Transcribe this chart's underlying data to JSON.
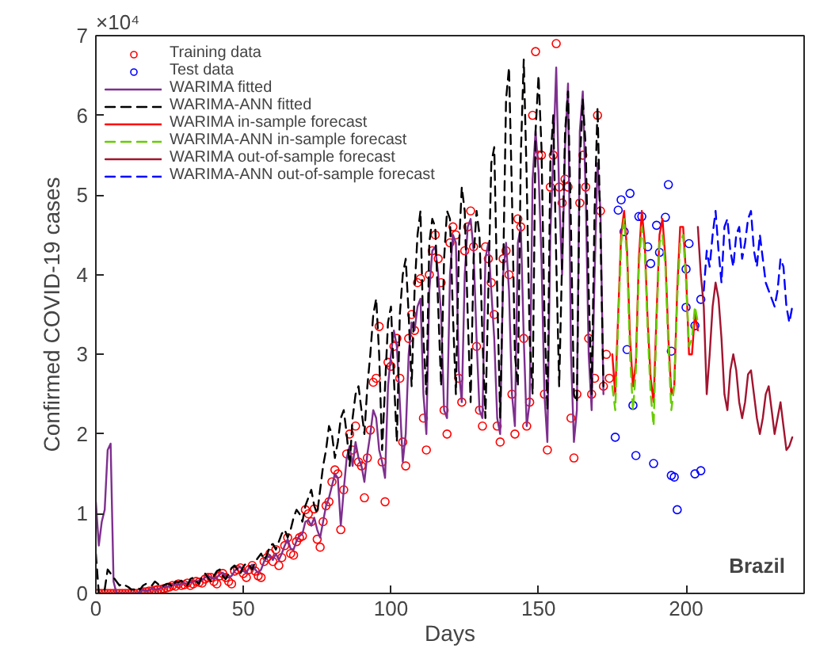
{
  "chart_data": {
    "type": "line",
    "xlabel": "Days",
    "ylabel": "Confirmed COVID-19 cases",
    "annotations": [
      "×10⁴",
      "Brazil"
    ],
    "xlim": [
      0,
      240
    ],
    "xticks": [
      0,
      50,
      100,
      150,
      200
    ],
    "ylim": [
      0,
      7
    ],
    "yticks": [
      0,
      1,
      2,
      3,
      4,
      5,
      6,
      7
    ],
    "grid": false,
    "legend": "top left",
    "series": [
      {
        "name": "Training data",
        "type": "scatter",
        "marker": "circle",
        "color": "#ff0000",
        "x": [
          0,
          1,
          2,
          3,
          4,
          5,
          6,
          7,
          8,
          9,
          10,
          11,
          12,
          13,
          14,
          15,
          16,
          17,
          18,
          19,
          20,
          21,
          22,
          23,
          24,
          25,
          26,
          27,
          28,
          29,
          30,
          31,
          32,
          33,
          34,
          35,
          36,
          37,
          38,
          39,
          40,
          41,
          42,
          43,
          44,
          45,
          46,
          47,
          48,
          49,
          50,
          51,
          52,
          53,
          54,
          55,
          56,
          57,
          58,
          59,
          60,
          61,
          62,
          63,
          64,
          65,
          66,
          67,
          68,
          69,
          70,
          71,
          72,
          73,
          74,
          75,
          76,
          77,
          78,
          79,
          80,
          81,
          82,
          83,
          84,
          85,
          86,
          87,
          88,
          89,
          90,
          91,
          92,
          93,
          94,
          95,
          96,
          97,
          98,
          99,
          100,
          101,
          102,
          103,
          104,
          105,
          106,
          107,
          108,
          109,
          110,
          111,
          112,
          113,
          114,
          115,
          116,
          117,
          118,
          119,
          120,
          121,
          122,
          123,
          124,
          125,
          126,
          127,
          128,
          129,
          130,
          131,
          132,
          133,
          134,
          135,
          136,
          137,
          138,
          139,
          140,
          141,
          142,
          143,
          144,
          145,
          146,
          147,
          148,
          149,
          150,
          151,
          152,
          153,
          154,
          155,
          156,
          157,
          158,
          159,
          160,
          161,
          162,
          163,
          164,
          165,
          166,
          167,
          168,
          169,
          170,
          171,
          172,
          173,
          174
        ],
        "values": [
          0,
          0,
          0,
          0,
          0,
          0,
          0,
          0,
          0,
          0,
          0,
          0,
          0,
          0,
          0,
          0.01,
          0.02,
          0.02,
          0.03,
          0.03,
          0.04,
          0.05,
          0.05,
          0.06,
          0.07,
          0.08,
          0.1,
          0.09,
          0.12,
          0.1,
          0.11,
          0.13,
          0.1,
          0.12,
          0.15,
          0.14,
          0.13,
          0.18,
          0.2,
          0.2,
          0.15,
          0.12,
          0.22,
          0.25,
          0.2,
          0.15,
          0.12,
          0.28,
          0.3,
          0.32,
          0.25,
          0.2,
          0.3,
          0.35,
          0.28,
          0.22,
          0.2,
          0.4,
          0.45,
          0.5,
          0.4,
          0.55,
          0.35,
          0.45,
          0.6,
          0.7,
          0.5,
          0.48,
          0.65,
          0.7,
          0.72,
          1.05,
          1.0,
          0.9,
          1.06,
          0.68,
          0.58,
          0.9,
          1.1,
          1.15,
          1.4,
          1.55,
          1.5,
          0.8,
          1.3,
          1.75,
          2.0,
          1.8,
          2.1,
          1.65,
          1.6,
          1.2,
          1.7,
          2.05,
          2.65,
          2.7,
          3.35,
          1.65,
          1.15,
          2.9,
          2.85,
          3.1,
          3.2,
          2.7,
          1.9,
          1.6,
          3.2,
          3.5,
          3.3,
          3.9,
          3.95,
          2.2,
          1.8,
          4.0,
          4.3,
          4.5,
          4.2,
          3.9,
          2.3,
          2.0,
          4.4,
          4.6,
          4.5,
          2.7,
          2.4,
          4.3,
          4.6,
          4.8,
          4.35,
          3.1,
          2.3,
          2.1,
          4.35,
          4.2,
          3.9,
          3.5,
          2.1,
          1.9,
          4.2,
          4.3,
          4.0,
          2.5,
          2.0,
          4.7,
          4.6,
          3.2,
          2.1,
          2.4,
          6.0,
          6.8,
          5.5,
          5.5,
          2.5,
          1.8,
          5.1,
          5.5,
          6.9,
          5.1,
          4.9,
          5.2,
          5.1,
          2.2,
          1.7,
          2.5,
          4.9,
          5.5,
          5.1,
          3.2,
          2.5,
          2.7,
          6.0,
          4.8,
          2.6,
          3.0,
          2.7
        ]
      },
      {
        "name": "Test data",
        "type": "scatter",
        "marker": "circle",
        "color": "#0000ff",
        "x": [
          176,
          177,
          178,
          179,
          180,
          181,
          182,
          183,
          184,
          185,
          187,
          188,
          189,
          190,
          191,
          193,
          194,
          195,
          195,
          196,
          197,
          200,
          200,
          201,
          203,
          203,
          205,
          205
        ],
        "values": [
          1.96,
          4.81,
          4.94,
          4.54,
          3.06,
          5.02,
          2.36,
          1.73,
          4.73,
          4.73,
          4.35,
          4.14,
          1.63,
          4.62,
          4.28,
          4.72,
          5.13,
          3.04,
          1.48,
          1.46,
          1.05,
          4.07,
          3.59,
          4.39,
          3.36,
          1.5,
          1.54,
          3.69
        ]
      },
      {
        "name": "WARIMA fitted",
        "line_style": "solid",
        "color": "#7e2f8e",
        "x": [
          0,
          1,
          2,
          3,
          4,
          5,
          6,
          7,
          8,
          9,
          10,
          11,
          12,
          13,
          14,
          15,
          16,
          17,
          18,
          19,
          20,
          21,
          22,
          23,
          24,
          25,
          26,
          27,
          28,
          29,
          30,
          31,
          32,
          33,
          34,
          35,
          36,
          37,
          38,
          39,
          40,
          41,
          42,
          43,
          44,
          45,
          46,
          47,
          48,
          49,
          50,
          51,
          52,
          53,
          54,
          55,
          56,
          57,
          58,
          59,
          60,
          61,
          62,
          63,
          64,
          65,
          66,
          67,
          68,
          69,
          70,
          71,
          72,
          73,
          74,
          75,
          76,
          77,
          78,
          79,
          80,
          81,
          82,
          83,
          84,
          85,
          86,
          87,
          88,
          89,
          90,
          91,
          92,
          93,
          94,
          95,
          96,
          97,
          98,
          99,
          100,
          101,
          102,
          103,
          104,
          105,
          106,
          107,
          108,
          109,
          110,
          111,
          112,
          113,
          114,
          115,
          116,
          117,
          118,
          119,
          120,
          121,
          122,
          123,
          124,
          125,
          126,
          127,
          128,
          129,
          130,
          131,
          132,
          133,
          134,
          135,
          136,
          137,
          138,
          139,
          140,
          141,
          142,
          143,
          144,
          145,
          146,
          147,
          148,
          149,
          150,
          151,
          152,
          153,
          154,
          155,
          156,
          157,
          158,
          159,
          160,
          161,
          162,
          163,
          164,
          165,
          166,
          167,
          168,
          169,
          170,
          171,
          172
        ],
        "values": [
          1.15,
          0.6,
          0.9,
          1.05,
          1.8,
          1.88,
          0.15,
          0,
          0,
          0,
          0,
          0,
          0,
          0,
          0,
          0.02,
          0.05,
          0.03,
          0.04,
          0.06,
          0.05,
          0.05,
          0.07,
          0.08,
          0.08,
          0.09,
          0.1,
          0.12,
          0.11,
          0.12,
          0.13,
          0.12,
          0.14,
          0.15,
          0.15,
          0.16,
          0.17,
          0.2,
          0.22,
          0.2,
          0.18,
          0.2,
          0.24,
          0.26,
          0.22,
          0.2,
          0.22,
          0.28,
          0.32,
          0.33,
          0.28,
          0.26,
          0.33,
          0.36,
          0.3,
          0.26,
          0.3,
          0.4,
          0.45,
          0.48,
          0.42,
          0.5,
          0.42,
          0.5,
          0.6,
          0.68,
          0.56,
          0.55,
          0.66,
          0.72,
          0.75,
          0.9,
          0.92,
          0.85,
          0.95,
          0.8,
          0.7,
          0.9,
          1.1,
          1.2,
          1.35,
          1.5,
          1.45,
          0.85,
          1.3,
          1.7,
          1.85,
          1.6,
          1.9,
          1.7,
          1.6,
          1.4,
          1.75,
          2.0,
          2.3,
          2.2,
          1.8,
          1.65,
          1.45,
          2.6,
          3.0,
          3.3,
          3.1,
          2.4,
          1.65,
          2.0,
          3.0,
          3.4,
          3.3,
          3.6,
          3.7,
          2.5,
          2.0,
          3.8,
          4.3,
          4.35,
          4.0,
          3.5,
          2.3,
          2.2,
          4.0,
          4.5,
          4.4,
          2.8,
          2.4,
          4.0,
          4.6,
          4.7,
          4.3,
          3.2,
          2.3,
          2.2,
          4.2,
          4.4,
          3.8,
          3.2,
          2.2,
          2.0,
          4.0,
          4.4,
          3.8,
          2.5,
          2.1,
          4.4,
          4.6,
          3.2,
          2.1,
          2.4,
          5.2,
          5.8,
          5.3,
          4.2,
          2.5,
          1.9,
          4.5,
          5.5,
          6.6,
          5.0,
          4.0,
          5.6,
          6.4,
          3.0,
          1.9,
          2.3,
          5.8,
          6.3,
          5.0,
          3.0,
          2.3,
          4.0,
          5.4,
          4.8,
          2.5
        ]
      },
      {
        "name": "WARIMA-ANN fitted",
        "line_style": "dashed",
        "color": "#000000",
        "x": [
          0,
          1,
          2,
          3,
          4,
          5,
          6,
          7,
          8,
          9,
          10,
          11,
          12,
          13,
          14,
          15,
          16,
          17,
          18,
          19,
          20,
          21,
          22,
          23,
          24,
          25,
          26,
          27,
          28,
          29,
          30,
          31,
          32,
          33,
          34,
          35,
          36,
          37,
          38,
          39,
          40,
          41,
          42,
          43,
          44,
          45,
          46,
          47,
          48,
          49,
          50,
          51,
          52,
          53,
          54,
          55,
          56,
          57,
          58,
          59,
          60,
          61,
          62,
          63,
          64,
          65,
          66,
          67,
          68,
          69,
          70,
          71,
          72,
          73,
          74,
          75,
          76,
          77,
          78,
          79,
          80,
          81,
          82,
          83,
          84,
          85,
          86,
          87,
          88,
          89,
          90,
          91,
          92,
          93,
          94,
          95,
          96,
          97,
          98,
          99,
          100,
          101,
          102,
          103,
          104,
          105,
          106,
          107,
          108,
          109,
          110,
          111,
          112,
          113,
          114,
          115,
          116,
          117,
          118,
          119,
          120,
          121,
          122,
          123,
          124,
          125,
          126,
          127,
          128,
          129,
          130,
          131,
          132,
          133,
          134,
          135,
          136,
          137,
          138,
          139,
          140,
          141,
          142,
          143,
          144,
          145,
          146,
          147,
          148,
          149,
          150,
          151,
          152,
          153,
          154,
          155,
          156,
          157,
          158,
          159,
          160,
          161,
          162,
          163,
          164,
          165,
          166,
          167,
          168,
          169,
          170,
          171,
          172
        ],
        "values": [
          0.5,
          0,
          0,
          0.05,
          0.3,
          0.25,
          0.2,
          0.15,
          0.1,
          0.12,
          0.1,
          0.08,
          0.05,
          0.05,
          0.08,
          0.05,
          0.1,
          0.12,
          0.1,
          0.1,
          0.15,
          0.12,
          0.08,
          0.1,
          0.12,
          0.12,
          0.08,
          0.15,
          0.14,
          0.16,
          0.12,
          0.1,
          0.18,
          0.2,
          0.15,
          0.12,
          0.22,
          0.25,
          0.2,
          0.15,
          0.22,
          0.28,
          0.3,
          0.22,
          0.18,
          0.25,
          0.32,
          0.35,
          0.3,
          0.25,
          0.34,
          0.38,
          0.35,
          0.3,
          0.4,
          0.45,
          0.5,
          0.42,
          0.48,
          0.6,
          0.62,
          0.55,
          0.65,
          0.75,
          0.8,
          0.7,
          0.8,
          0.95,
          1.05,
          1.0,
          0.9,
          1.1,
          1.2,
          1.3,
          1.1,
          1.0,
          1.3,
          1.6,
          1.8,
          2.1,
          2.0,
          1.7,
          1.9,
          2.2,
          2.3,
          2.0,
          1.6,
          2.2,
          2.5,
          2.6,
          2.3,
          2.0,
          2.6,
          3.0,
          3.5,
          3.7,
          3.0,
          1.8,
          2.6,
          3.4,
          3.6,
          2.7,
          1.9,
          3.5,
          4.0,
          4.2,
          3.5,
          2.6,
          3.8,
          4.5,
          4.8,
          3.2,
          2.5,
          4.4,
          4.7,
          4.6,
          3.6,
          2.6,
          4.2,
          4.8,
          4.7,
          3.5,
          2.5,
          4.3,
          5.1,
          4.8,
          3.5,
          2.4,
          4.2,
          4.8,
          4.5,
          3.2,
          2.2,
          3.8,
          5.4,
          5.6,
          3.8,
          2.2,
          4.0,
          6.2,
          6.6,
          5.0,
          3.0,
          2.6,
          5.5,
          6.7,
          5.2,
          3.2,
          2.5,
          5.8,
          6.5,
          5.6,
          3.5,
          2.3,
          5.4,
          6.0,
          4.2,
          2.6,
          4.2,
          5.8,
          6.3,
          4.6,
          2.5,
          2.4,
          5.4,
          6.2,
          5.6,
          3.8,
          2.5,
          4.8,
          6.1,
          4.5,
          2.6
        ]
      },
      {
        "name": "WARIMA in-sample forecast",
        "line_style": "solid",
        "color": "#ff0000",
        "x": [
          175,
          176,
          177,
          178,
          179,
          180,
          181,
          182,
          183,
          184,
          185,
          186,
          187,
          188,
          189,
          190,
          191,
          192,
          193,
          194,
          195,
          196,
          197,
          198,
          199,
          200,
          201,
          202,
          203,
          204
        ],
        "values": [
          3.0,
          2.5,
          3.5,
          4.5,
          4.8,
          4.3,
          3.2,
          2.6,
          2.9,
          4.2,
          4.8,
          4.4,
          3.4,
          2.7,
          2.4,
          3.5,
          4.5,
          4.7,
          4.2,
          3.2,
          2.5,
          2.6,
          3.8,
          4.6,
          4.6,
          4.0,
          3.0,
          3.0,
          3.5,
          3.3
        ]
      },
      {
        "name": "WARIMA-ANN in-sample forecast",
        "line_style": "dashed",
        "color": "#66cc00",
        "x": [
          175,
          176,
          177,
          178,
          179,
          180,
          181,
          182,
          183,
          184,
          185,
          186,
          187,
          188,
          189,
          190,
          191,
          192,
          193,
          194,
          195,
          196,
          197,
          198,
          199,
          200,
          201,
          202,
          203,
          204
        ],
        "values": [
          2.6,
          2.3,
          3.4,
          4.4,
          4.7,
          4.2,
          3.0,
          2.3,
          2.8,
          4.1,
          4.6,
          4.3,
          3.3,
          2.5,
          2.1,
          3.4,
          4.4,
          4.5,
          4.1,
          3.1,
          2.3,
          2.6,
          3.7,
          4.4,
          4.5,
          3.9,
          3.1,
          3.2,
          3.6,
          3.4
        ]
      },
      {
        "name": "WARIMA out-of-sample forecast",
        "line_style": "solid",
        "color": "#a2142f",
        "x": [
          204,
          205,
          206,
          207,
          208,
          209,
          210,
          211,
          212,
          213,
          214,
          215,
          216,
          217,
          218,
          219,
          220,
          221,
          222,
          223,
          224,
          225,
          226,
          227,
          228,
          229,
          230,
          231,
          232,
          233,
          234,
          235,
          236
        ],
        "values": [
          4.6,
          4.0,
          3.6,
          2.5,
          3.0,
          3.6,
          3.9,
          3.7,
          3.2,
          2.5,
          2.3,
          2.8,
          3.0,
          2.8,
          2.4,
          2.2,
          2.4,
          2.75,
          2.8,
          2.5,
          2.2,
          2.0,
          2.2,
          2.5,
          2.6,
          2.3,
          2.0,
          2.2,
          2.4,
          2.1,
          1.8,
          1.85,
          1.96
        ]
      },
      {
        "name": "WARIMA-ANN out-of-sample forecast",
        "line_style": "dashed",
        "color": "#0000ff",
        "x": [
          206,
          207,
          208,
          209,
          210,
          211,
          212,
          213,
          214,
          215,
          216,
          217,
          218,
          219,
          220,
          221,
          222,
          223,
          224,
          225,
          226,
          227,
          228,
          229,
          230,
          231,
          232,
          233,
          234,
          235,
          236
        ],
        "values": [
          3.8,
          4.3,
          4.1,
          4.5,
          4.8,
          4.3,
          3.9,
          4.6,
          4.7,
          4.3,
          4.1,
          4.5,
          4.6,
          4.2,
          4.4,
          4.7,
          4.8,
          4.3,
          4.1,
          4.5,
          4.2,
          3.9,
          3.8,
          3.7,
          3.6,
          3.8,
          4.2,
          4.1,
          3.6,
          3.4,
          3.6
        ]
      }
    ]
  }
}
